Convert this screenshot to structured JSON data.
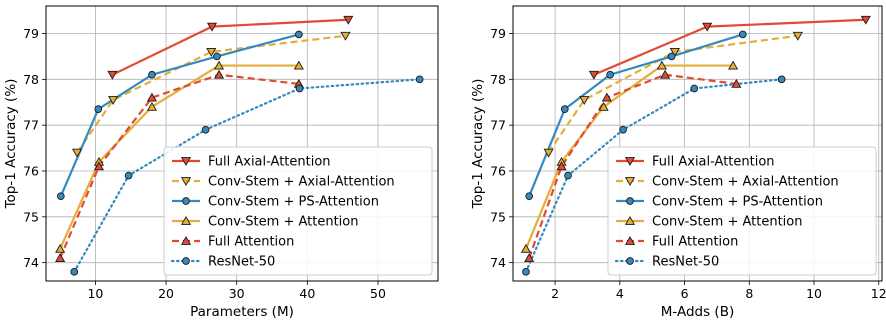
{
  "chart_data": [
    {
      "type": "line",
      "xlabel": "Parameters (M)",
      "ylabel": "Top-1 Accuracy (%)",
      "xlim": [
        3,
        58.5
      ],
      "ylim": [
        73.6,
        79.6
      ],
      "xticks": [
        10,
        20,
        30,
        40,
        50
      ],
      "yticks": [
        74,
        75,
        76,
        77,
        78,
        79
      ],
      "grid": true,
      "legend_position": "bottom-right",
      "series": [
        {
          "name": "Full Axial-Attention",
          "color": "#e24a33",
          "dash": "solid",
          "marker": "tri-down",
          "points": [
            [
              12.4,
              78.1
            ],
            [
              26.5,
              79.15
            ],
            [
              45.8,
              79.3
            ]
          ]
        },
        {
          "name": "Conv-Stem + Axial-Attention",
          "color": "#e5ae38",
          "dash": "dashed",
          "marker": "tri-down",
          "points": [
            [
              7.4,
              76.4
            ],
            [
              12.5,
              77.55
            ],
            [
              26.4,
              78.6
            ],
            [
              45.4,
              78.95
            ]
          ]
        },
        {
          "name": "Conv-Stem + PS-Attention",
          "color": "#348abd",
          "dash": "solid",
          "marker": "circle",
          "points": [
            [
              5.1,
              75.45
            ],
            [
              10.4,
              77.35
            ],
            [
              18.0,
              78.1
            ],
            [
              27.2,
              78.5
            ],
            [
              38.8,
              78.98
            ]
          ]
        },
        {
          "name": "Conv-Stem + Attention",
          "color": "#e5ae38",
          "dash": "solid",
          "marker": "tri-up",
          "points": [
            [
              5.0,
              74.3
            ],
            [
              10.5,
              76.2
            ],
            [
              18.0,
              77.4
            ],
            [
              27.5,
              78.3
            ],
            [
              38.8,
              78.3
            ]
          ]
        },
        {
          "name": "Full Attention",
          "color": "#e24a33",
          "dash": "dashed",
          "marker": "tri-up",
          "points": [
            [
              5.0,
              74.1
            ],
            [
              10.5,
              76.1
            ],
            [
              18.0,
              77.6
            ],
            [
              27.5,
              78.1
            ],
            [
              38.8,
              77.9
            ]
          ]
        },
        {
          "name": "ResNet-50",
          "color": "#348abd",
          "dash": "dotted",
          "marker": "circle",
          "points": [
            [
              7.0,
              73.8
            ],
            [
              14.7,
              75.9
            ],
            [
              25.6,
              76.9
            ],
            [
              38.9,
              77.8
            ],
            [
              55.9,
              78.0
            ]
          ]
        }
      ]
    },
    {
      "type": "line",
      "xlabel": "M-Adds (B)",
      "ylabel": "Top-1 Accuracy (%)",
      "xlim": [
        0.7,
        12.1
      ],
      "ylim": [
        73.6,
        79.6
      ],
      "xticks": [
        2,
        4,
        6,
        8,
        10,
        12
      ],
      "yticks": [
        74,
        75,
        76,
        77,
        78,
        79
      ],
      "grid": true,
      "legend_position": "bottom-right",
      "series": [
        {
          "name": "Full Axial-Attention",
          "color": "#e24a33",
          "dash": "solid",
          "marker": "tri-down",
          "points": [
            [
              3.2,
              78.1
            ],
            [
              6.7,
              79.15
            ],
            [
              11.6,
              79.3
            ]
          ]
        },
        {
          "name": "Conv-Stem + Axial-Attention",
          "color": "#e5ae38",
          "dash": "dashed",
          "marker": "tri-down",
          "points": [
            [
              1.8,
              76.4
            ],
            [
              2.9,
              77.55
            ],
            [
              5.7,
              78.6
            ],
            [
              9.5,
              78.95
            ]
          ]
        },
        {
          "name": "Conv-Stem + PS-Attention",
          "color": "#348abd",
          "dash": "solid",
          "marker": "circle",
          "points": [
            [
              1.2,
              75.45
            ],
            [
              2.3,
              77.35
            ],
            [
              3.7,
              78.1
            ],
            [
              5.6,
              78.5
            ],
            [
              7.8,
              78.98
            ]
          ]
        },
        {
          "name": "Conv-Stem + Attention",
          "color": "#e5ae38",
          "dash": "solid",
          "marker": "tri-up",
          "points": [
            [
              1.1,
              74.3
            ],
            [
              2.2,
              76.2
            ],
            [
              3.5,
              77.4
            ],
            [
              5.3,
              78.3
            ],
            [
              7.5,
              78.3
            ]
          ]
        },
        {
          "name": "Full Attention",
          "color": "#e24a33",
          "dash": "dashed",
          "marker": "tri-up",
          "points": [
            [
              1.2,
              74.1
            ],
            [
              2.2,
              76.1
            ],
            [
              3.6,
              77.6
            ],
            [
              5.4,
              78.1
            ],
            [
              7.6,
              77.9
            ]
          ]
        },
        {
          "name": "ResNet-50",
          "color": "#348abd",
          "dash": "dotted",
          "marker": "circle",
          "points": [
            [
              1.1,
              73.8
            ],
            [
              2.4,
              75.9
            ],
            [
              4.1,
              76.9
            ],
            [
              6.3,
              77.8
            ],
            [
              9.0,
              78.0
            ]
          ]
        }
      ]
    }
  ]
}
